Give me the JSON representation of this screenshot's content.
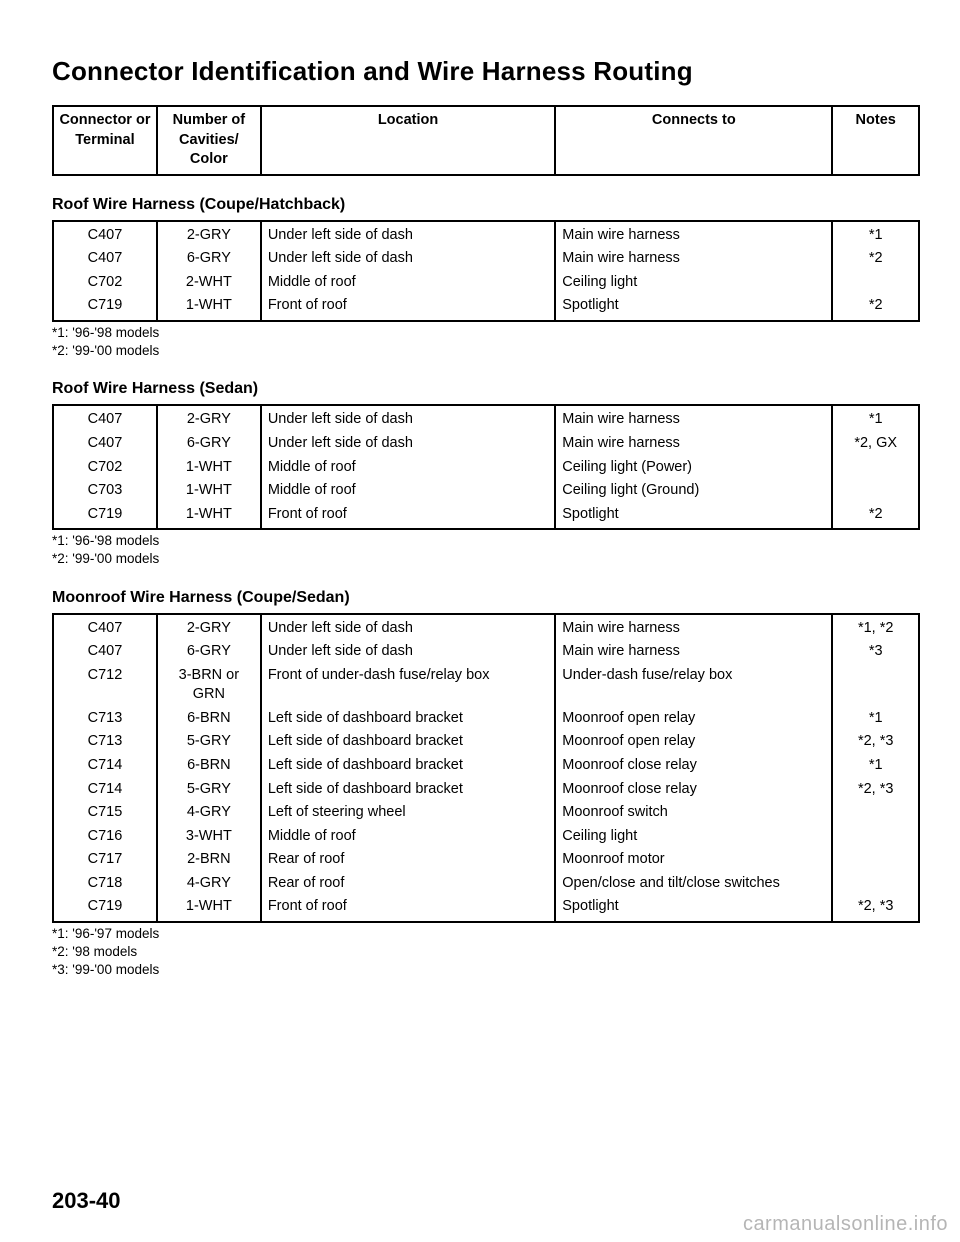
{
  "title": "Connector Identification and Wire Harness Routing",
  "header": {
    "c1": "Connector or Terminal",
    "c2": "Number of Cavities/ Color",
    "c3": "Location",
    "c4": "Connects to",
    "c5": "Notes"
  },
  "sections": [
    {
      "title": "Roof Wire Harness (Coupe/Hatchback)",
      "rows": [
        {
          "c1": "C407",
          "c2": "2-GRY",
          "c3": "Under left side of dash",
          "c4": "Main wire harness",
          "c5": "*1"
        },
        {
          "c1": "C407",
          "c2": "6-GRY",
          "c3": "Under left side of dash",
          "c4": "Main wire harness",
          "c5": "*2"
        },
        {
          "c1": "C702",
          "c2": "2-WHT",
          "c3": "Middle of roof",
          "c4": "Ceiling light",
          "c5": ""
        },
        {
          "c1": "C719",
          "c2": "1-WHT",
          "c3": "Front of roof",
          "c4": "Spotlight",
          "c5": "*2"
        }
      ],
      "footnotes": [
        "*1: '96-'98 models",
        "*2: '99-'00 models"
      ]
    },
    {
      "title": "Roof Wire Harness (Sedan)",
      "rows": [
        {
          "c1": "C407",
          "c2": "2-GRY",
          "c3": "Under left side of dash",
          "c4": "Main wire harness",
          "c5": "*1"
        },
        {
          "c1": "C407",
          "c2": "6-GRY",
          "c3": "Under left side of dash",
          "c4": "Main wire harness",
          "c5": "*2, GX"
        },
        {
          "c1": "C702",
          "c2": "1-WHT",
          "c3": "Middle of roof",
          "c4": "Ceiling light (Power)",
          "c5": ""
        },
        {
          "c1": "C703",
          "c2": "1-WHT",
          "c3": "Middle of roof",
          "c4": "Ceiling light (Ground)",
          "c5": ""
        },
        {
          "c1": "C719",
          "c2": "1-WHT",
          "c3": "Front of roof",
          "c4": "Spotlight",
          "c5": "*2"
        }
      ],
      "footnotes": [
        "*1: '96-'98 models",
        "*2: '99-'00 models"
      ]
    },
    {
      "title": "Moonroof Wire Harness (Coupe/Sedan)",
      "rows": [
        {
          "c1": "C407",
          "c2": "2-GRY",
          "c3": "Under left side of dash",
          "c4": "Main wire harness",
          "c5": "*1, *2"
        },
        {
          "c1": "C407",
          "c2": "6-GRY",
          "c3": "Under left side of dash",
          "c4": "Main wire harness",
          "c5": "*3"
        },
        {
          "c1": "C712",
          "c2": "3-BRN or GRN",
          "c3": "Front of under-dash fuse/relay box",
          "c4": "Under-dash fuse/relay box",
          "c5": ""
        },
        {
          "c1": "C713",
          "c2": "6-BRN",
          "c3": "Left side of dashboard bracket",
          "c4": "Moonroof open relay",
          "c5": "*1"
        },
        {
          "c1": "C713",
          "c2": "5-GRY",
          "c3": "Left side of dashboard bracket",
          "c4": "Moonroof open relay",
          "c5": "*2, *3"
        },
        {
          "c1": "C714",
          "c2": "6-BRN",
          "c3": "Left side of dashboard bracket",
          "c4": "Moonroof close relay",
          "c5": "*1"
        },
        {
          "c1": "C714",
          "c2": "5-GRY",
          "c3": "Left side of dashboard bracket",
          "c4": "Moonroof close relay",
          "c5": "*2, *3"
        },
        {
          "c1": "C715",
          "c2": "4-GRY",
          "c3": "Left of steering wheel",
          "c4": "Moonroof switch",
          "c5": ""
        },
        {
          "c1": "C716",
          "c2": "3-WHT",
          "c3": "Middle of roof",
          "c4": "Ceiling light",
          "c5": ""
        },
        {
          "c1": "C717",
          "c2": "2-BRN",
          "c3": "Rear of roof",
          "c4": "Moonroof motor",
          "c5": ""
        },
        {
          "c1": "C718",
          "c2": "4-GRY",
          "c3": "Rear of roof",
          "c4": "Open/close and tilt/close switches",
          "c5": ""
        },
        {
          "c1": "C719",
          "c2": "1-WHT",
          "c3": "Front of roof",
          "c4": "Spotlight",
          "c5": "*2, *3"
        }
      ],
      "footnotes": [
        "*1: '96-'97 models",
        "*2: '98 models",
        "*3: '99-'00 models"
      ]
    }
  ],
  "page_number": "203-40",
  "watermark": "carmanualsonline.info",
  "colors": {
    "text": "#000000",
    "page_bg": "#ffffff",
    "border": "#000000",
    "watermark": "rgba(120,120,120,0.55)"
  }
}
